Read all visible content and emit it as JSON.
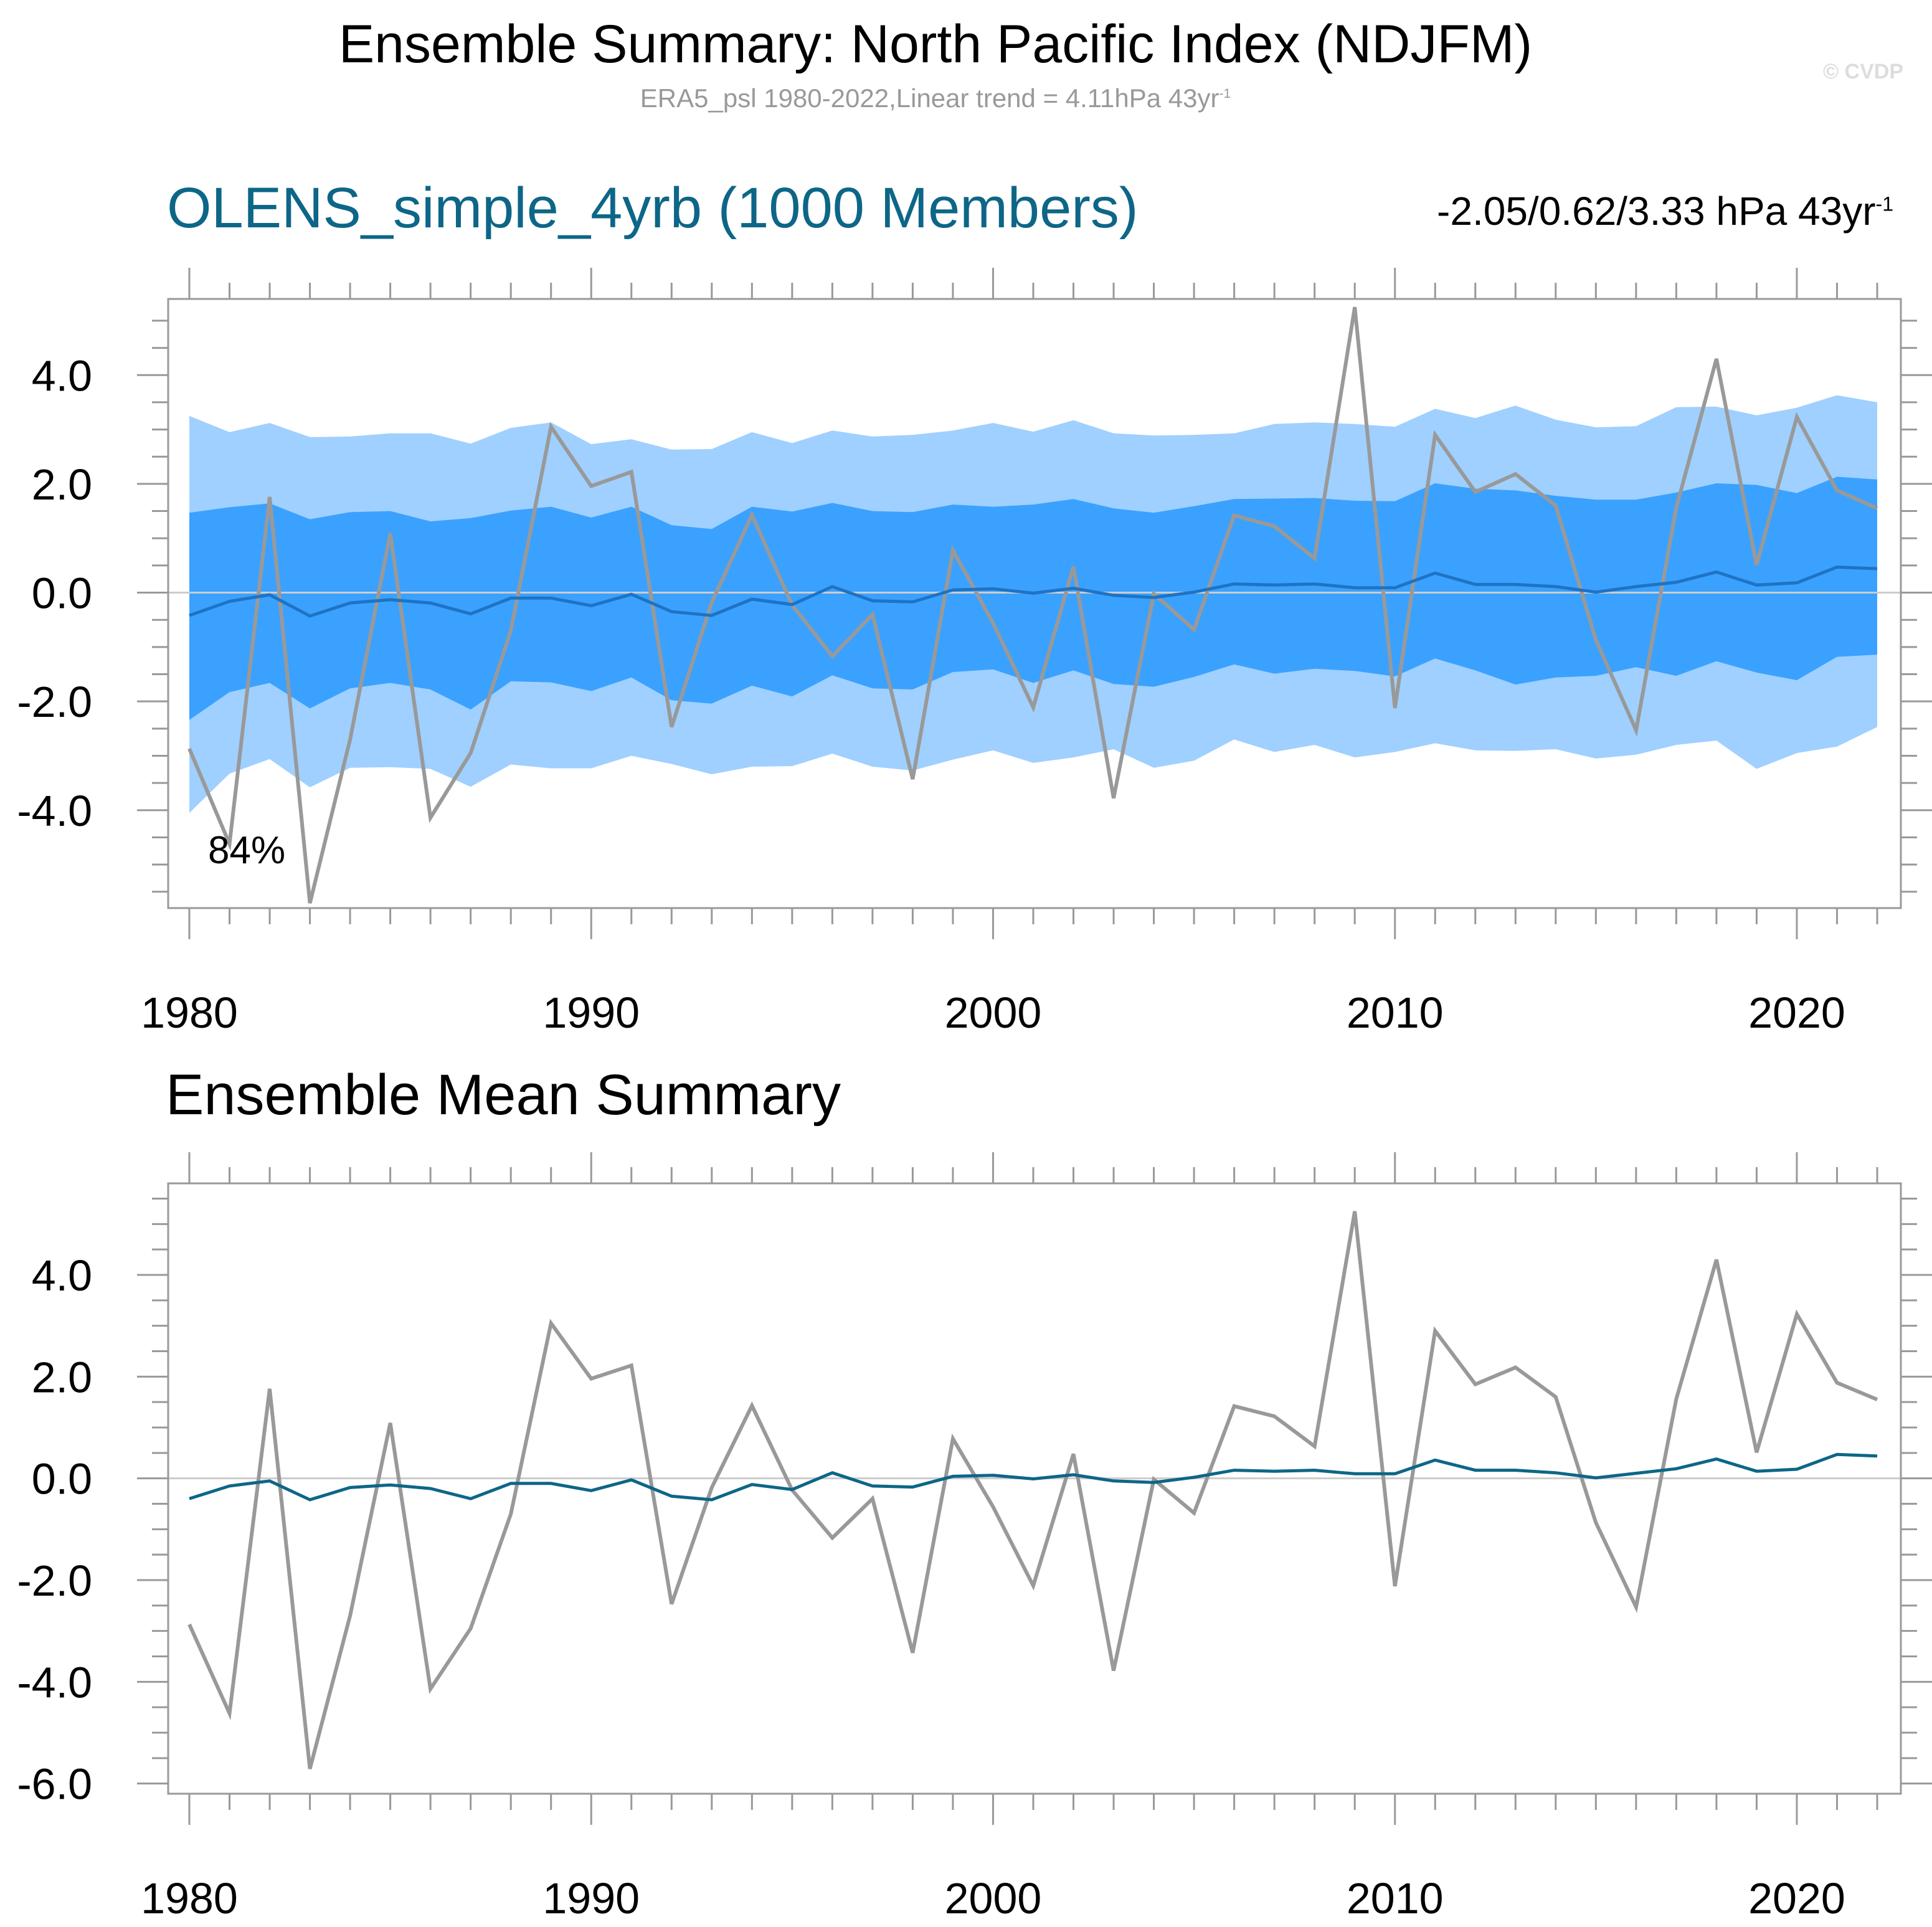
{
  "header": {
    "title": "Ensemble Summary: North Pacific Index (NDJFM)",
    "subtitle": "ERA5_psl 1980-2022,Linear trend = 4.11hPa 43yr",
    "subtitle_sup": "-1",
    "watermark": "© CVDP"
  },
  "top_panel": {
    "title": "OLENS_simple_4yrb (1000 Members)",
    "trend_text": "-2.05/0.62/3.33 hPa 43yr",
    "trend_sup": "-1",
    "percent_label": "84%"
  },
  "bottom_panel": {
    "title": "Ensemble Mean Summary"
  },
  "colors": {
    "outer_band": "#9fd0ff",
    "inner_band": "#3ba1ff",
    "ensemble_mean_top": "#1e73c4",
    "ensemble_mean_bottom": "#0d6687",
    "observations": "#999999",
    "frame": "#999999",
    "zero_line": "#cccccc"
  },
  "chart_data": [
    {
      "type": "area",
      "panel": "top",
      "title": "OLENS_simple_4yrb (1000 Members)",
      "xlim": [
        1980,
        2022
      ],
      "ylim": [
        -5.8,
        5.4
      ],
      "x_ticks": [
        1980,
        1990,
        2000,
        2010,
        2020
      ],
      "y_ticks": [
        4.0,
        2.0,
        0.0,
        -2.0,
        -4.0
      ],
      "y_tick_labels": [
        "4.0",
        "2.0",
        "0.0",
        "-2.0",
        "-4.0"
      ],
      "x": [
        1980,
        1981,
        1982,
        1983,
        1984,
        1985,
        1986,
        1987,
        1988,
        1989,
        1990,
        1991,
        1992,
        1993,
        1994,
        1995,
        1996,
        1997,
        1998,
        1999,
        2000,
        2001,
        2002,
        2003,
        2004,
        2005,
        2006,
        2007,
        2008,
        2009,
        2010,
        2011,
        2012,
        2013,
        2014,
        2015,
        2016,
        2017,
        2018,
        2019,
        2020,
        2021,
        2022
      ],
      "series": [
        {
          "role": "outer_band_upper",
          "values": [
            3.25,
            2.95,
            3.12,
            2.86,
            2.87,
            2.93,
            2.93,
            2.74,
            3.03,
            3.13,
            2.73,
            2.82,
            2.63,
            2.64,
            2.95,
            2.75,
            2.98,
            2.87,
            2.9,
            2.98,
            3.12,
            2.96,
            3.17,
            2.93,
            2.89,
            2.9,
            2.93,
            3.1,
            3.13,
            3.1,
            3.05,
            3.38,
            3.21,
            3.44,
            3.18,
            3.04,
            3.06,
            3.41,
            3.42,
            3.26,
            3.4,
            3.63,
            3.5
          ]
        },
        {
          "role": "inner_band_upper",
          "values": [
            1.47,
            1.57,
            1.64,
            1.35,
            1.48,
            1.5,
            1.31,
            1.37,
            1.51,
            1.58,
            1.38,
            1.58,
            1.24,
            1.17,
            1.58,
            1.49,
            1.65,
            1.5,
            1.48,
            1.62,
            1.58,
            1.62,
            1.72,
            1.55,
            1.47,
            1.59,
            1.72,
            1.73,
            1.74,
            1.69,
            1.68,
            2.01,
            1.91,
            1.88,
            1.78,
            1.71,
            1.71,
            1.84,
            2.01,
            1.98,
            1.83,
            2.13,
            2.08
          ]
        },
        {
          "role": "inner_band_lower",
          "values": [
            -2.34,
            -1.83,
            -1.66,
            -2.13,
            -1.76,
            -1.66,
            -1.78,
            -2.15,
            -1.63,
            -1.65,
            -1.81,
            -1.56,
            -1.98,
            -2.04,
            -1.71,
            -1.91,
            -1.52,
            -1.76,
            -1.78,
            -1.46,
            -1.41,
            -1.66,
            -1.43,
            -1.68,
            -1.73,
            -1.55,
            -1.32,
            -1.49,
            -1.4,
            -1.44,
            -1.54,
            -1.21,
            -1.43,
            -1.69,
            -1.56,
            -1.53,
            -1.37,
            -1.53,
            -1.26,
            -1.47,
            -1.61,
            -1.18,
            -1.14
          ]
        },
        {
          "role": "outer_band_lower",
          "values": [
            -4.05,
            -3.33,
            -3.06,
            -3.58,
            -3.22,
            -3.21,
            -3.24,
            -3.57,
            -3.16,
            -3.23,
            -3.23,
            -3.0,
            -3.15,
            -3.34,
            -3.2,
            -3.19,
            -2.96,
            -3.2,
            -3.27,
            -3.07,
            -2.9,
            -3.13,
            -3.03,
            -2.88,
            -3.22,
            -3.09,
            -2.7,
            -2.93,
            -2.8,
            -3.03,
            -2.93,
            -2.77,
            -2.9,
            -2.91,
            -2.88,
            -3.05,
            -2.98,
            -2.8,
            -2.72,
            -3.24,
            -2.95,
            -2.83,
            -2.47
          ]
        },
        {
          "name": "",
          "role": "ensemble_mean",
          "values": [
            -0.42,
            -0.16,
            -0.04,
            -0.43,
            -0.19,
            -0.13,
            -0.19,
            -0.39,
            -0.1,
            -0.1,
            -0.24,
            -0.03,
            -0.35,
            -0.42,
            -0.12,
            -0.22,
            0.11,
            -0.15,
            -0.17,
            0.05,
            0.07,
            -0.01,
            0.08,
            -0.05,
            -0.09,
            0.01,
            0.16,
            0.14,
            0.16,
            0.09,
            0.09,
            0.36,
            0.15,
            0.15,
            0.11,
            0.01,
            0.11,
            0.19,
            0.38,
            0.14,
            0.18,
            0.47,
            0.44
          ]
        },
        {
          "name": "",
          "role": "observations",
          "values": [
            -2.87,
            -4.62,
            1.76,
            -5.71,
            -2.7,
            1.09,
            -4.14,
            -2.95,
            -0.7,
            3.05,
            1.96,
            2.22,
            -2.47,
            -0.18,
            1.43,
            -0.23,
            -1.17,
            -0.4,
            -3.43,
            0.78,
            -0.56,
            -2.11,
            0.48,
            -3.78,
            -0.02,
            -0.68,
            1.42,
            1.22,
            0.63,
            5.25,
            -2.12,
            2.9,
            1.85,
            2.18,
            1.6,
            -0.87,
            -2.53,
            1.56,
            4.3,
            0.51,
            3.23,
            1.88,
            1.55
          ]
        }
      ]
    },
    {
      "type": "line",
      "panel": "bottom",
      "title": "Ensemble Mean Summary",
      "xlim": [
        1980,
        2022
      ],
      "ylim": [
        -6.2,
        5.8
      ],
      "x_ticks": [
        1980,
        1990,
        2000,
        2010,
        2020
      ],
      "y_ticks": [
        4.0,
        2.0,
        0.0,
        -2.0,
        -4.0,
        -6.0
      ],
      "y_tick_labels": [
        "4.0",
        "2.0",
        "0.0",
        "-2.0",
        "-4.0",
        "-6.0"
      ],
      "x": [
        1980,
        1981,
        1982,
        1983,
        1984,
        1985,
        1986,
        1987,
        1988,
        1989,
        1990,
        1991,
        1992,
        1993,
        1994,
        1995,
        1996,
        1997,
        1998,
        1999,
        2000,
        2001,
        2002,
        2003,
        2004,
        2005,
        2006,
        2007,
        2008,
        2009,
        2010,
        2011,
        2012,
        2013,
        2014,
        2015,
        2016,
        2017,
        2018,
        2019,
        2020,
        2021,
        2022
      ],
      "series": [
        {
          "name": "",
          "role": "ensemble_mean",
          "values": [
            -0.4,
            -0.15,
            -0.05,
            -0.42,
            -0.18,
            -0.13,
            -0.2,
            -0.4,
            -0.1,
            -0.1,
            -0.24,
            -0.03,
            -0.35,
            -0.42,
            -0.12,
            -0.22,
            0.11,
            -0.15,
            -0.17,
            0.04,
            0.06,
            -0.01,
            0.07,
            -0.05,
            -0.08,
            0.02,
            0.16,
            0.14,
            0.16,
            0.09,
            0.09,
            0.36,
            0.16,
            0.16,
            0.11,
            0.01,
            0.1,
            0.19,
            0.38,
            0.14,
            0.18,
            0.47,
            0.44
          ]
        },
        {
          "name": "",
          "role": "observations",
          "values": [
            -2.87,
            -4.62,
            1.76,
            -5.71,
            -2.7,
            1.09,
            -4.14,
            -2.95,
            -0.7,
            3.05,
            1.96,
            2.22,
            -2.47,
            -0.18,
            1.43,
            -0.23,
            -1.17,
            -0.4,
            -3.43,
            0.78,
            -0.56,
            -2.11,
            0.48,
            -3.78,
            -0.02,
            -0.68,
            1.42,
            1.22,
            0.63,
            5.25,
            -2.12,
            2.9,
            1.85,
            2.18,
            1.6,
            -0.87,
            -2.53,
            1.56,
            4.3,
            0.51,
            3.23,
            1.88,
            1.55
          ]
        }
      ]
    }
  ]
}
